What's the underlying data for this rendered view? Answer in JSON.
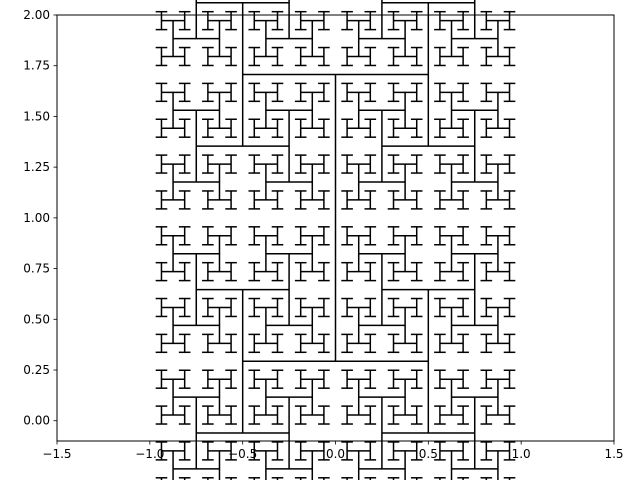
{
  "chart_data": {
    "type": "line",
    "title": "",
    "xlabel": "",
    "ylabel": "",
    "xlim": [
      -1.5,
      1.5
    ],
    "ylim": [
      -0.1,
      2.0
    ],
    "grid": false,
    "xticks": [
      -1.5,
      -1.0,
      -0.5,
      0.0,
      0.5,
      1.0,
      1.5
    ],
    "xtick_labels": [
      "−1.5",
      "−1.0",
      "−0.5",
      "0.0",
      "0.5",
      "1.0",
      "1.5"
    ],
    "yticks": [
      0.0,
      0.25,
      0.5,
      0.75,
      1.0,
      1.25,
      1.5,
      1.75,
      2.0
    ],
    "ytick_labels": [
      "0.00",
      "0.25",
      "0.50",
      "0.75",
      "1.00",
      "1.25",
      "1.50",
      "1.75",
      "2.00"
    ],
    "fractal": {
      "name": "H-tree",
      "center": [
        0.0,
        1.0
      ],
      "first_segment_length": 1.414,
      "scale_factor": 0.7071,
      "levels": 10
    },
    "series": [
      {
        "color": "#000000"
      }
    ]
  }
}
